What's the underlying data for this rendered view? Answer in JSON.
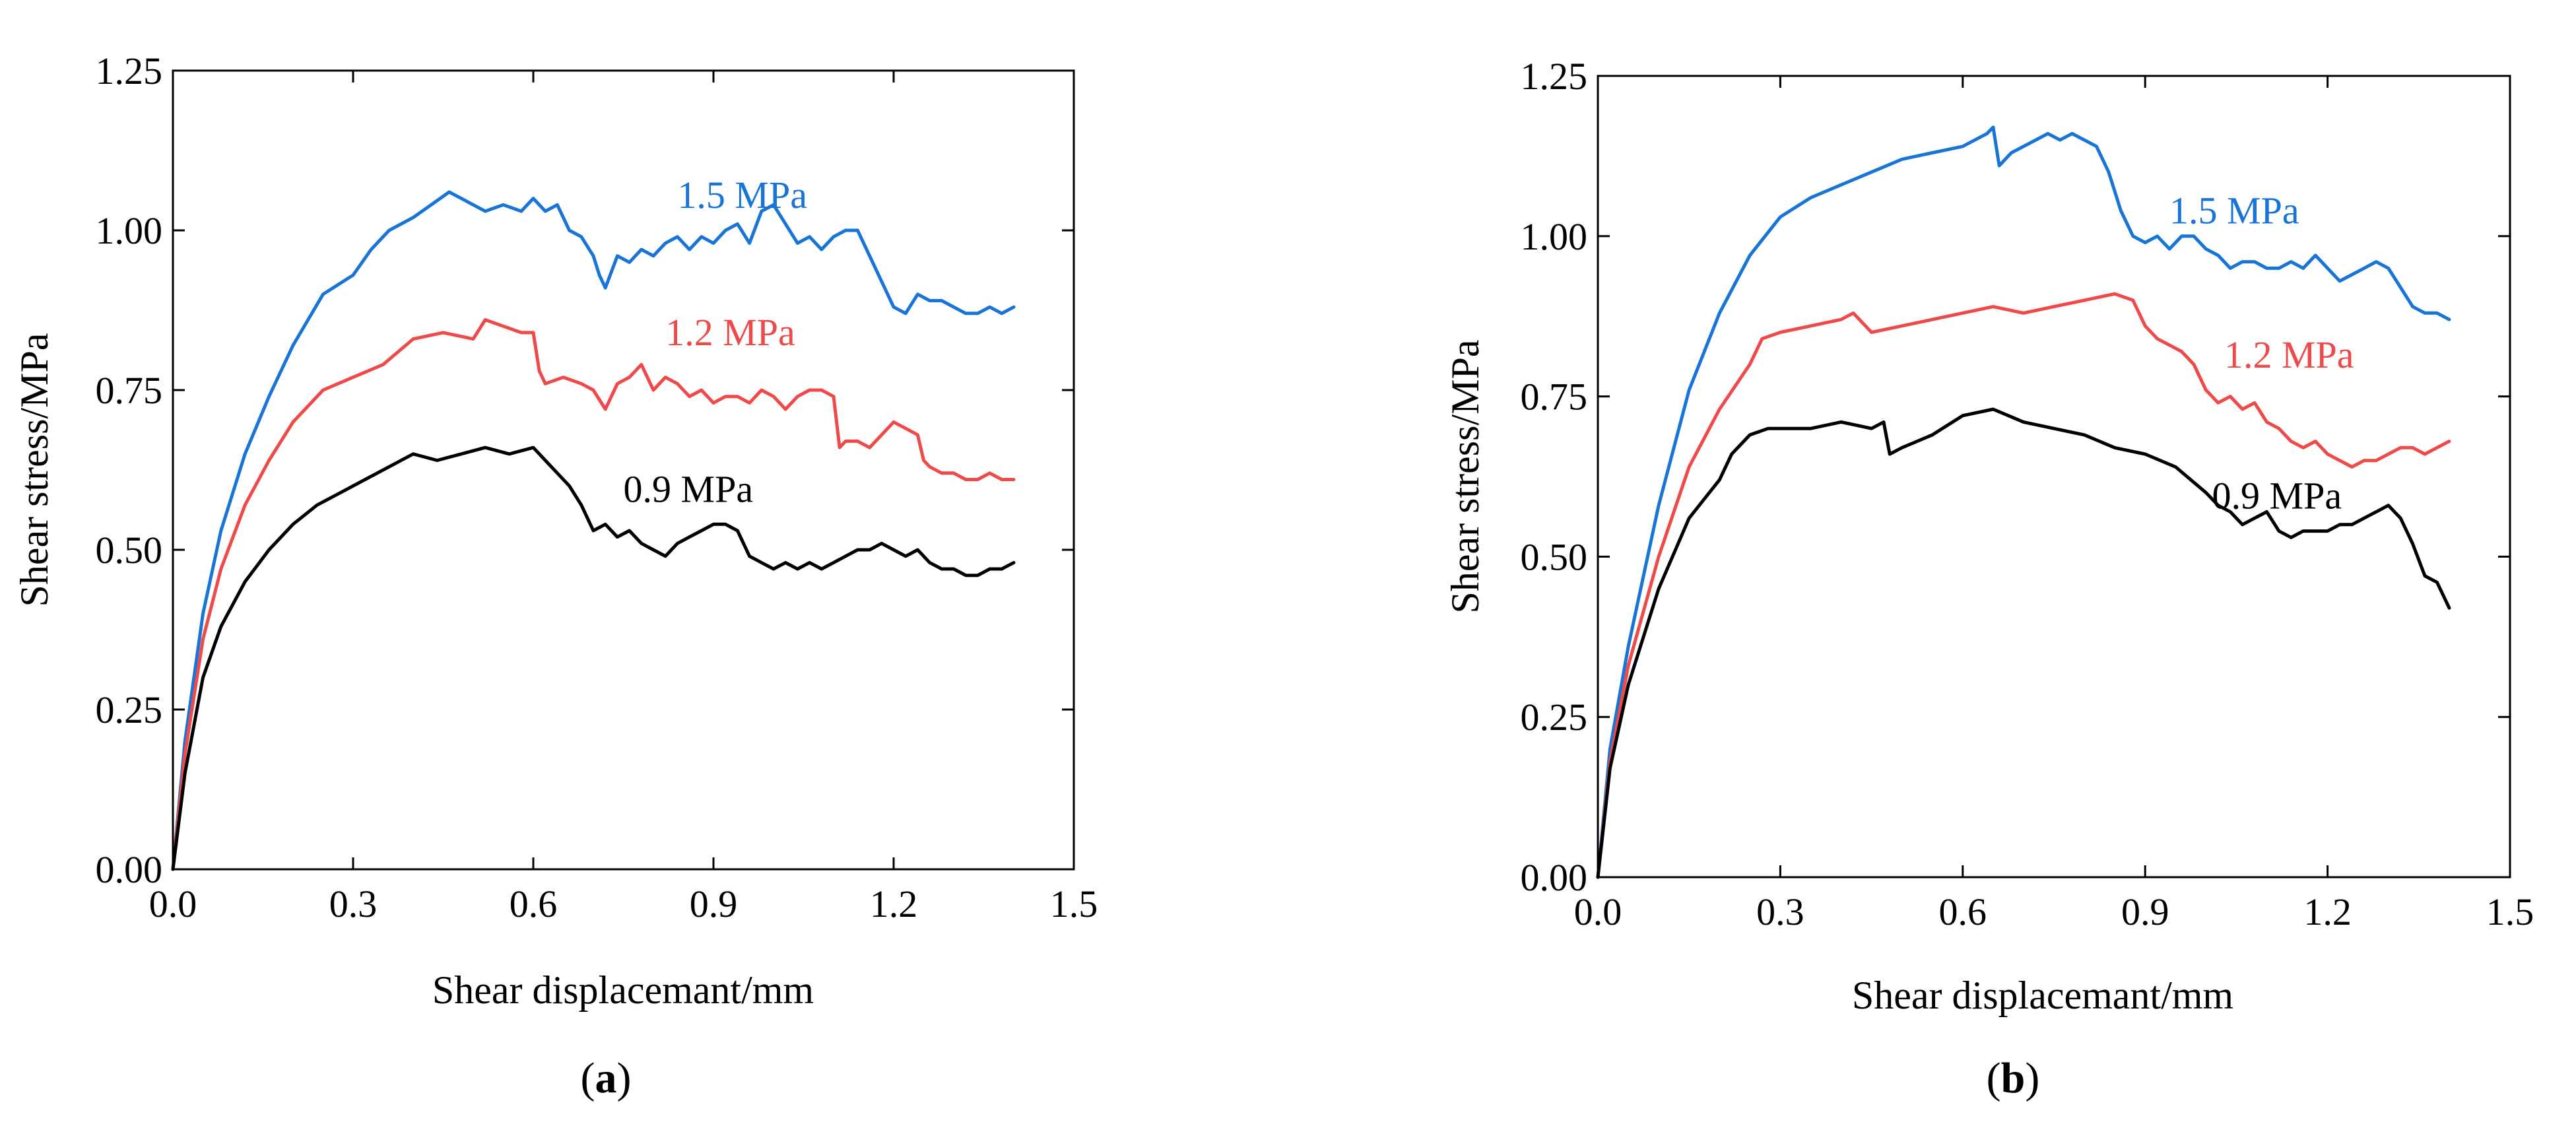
{
  "colors": {
    "series_1_5": "#1874d6",
    "series_1_2": "#ef4a4a",
    "series_0_9": "#000000",
    "axis": "#000000",
    "background": "#ffffff"
  },
  "chart_data": [
    {
      "type": "line",
      "panel": "a",
      "caption_open": "(",
      "caption_letter": "a",
      "caption_close": ")",
      "xlabel": "Shear displacemant/mm",
      "ylabel": "Shear stress/MPa",
      "xlim": [
        0,
        1.5
      ],
      "ylim": [
        0,
        1.25
      ],
      "xticks": [
        0.0,
        0.3,
        0.6,
        0.9,
        1.2,
        1.5
      ],
      "yticks": [
        0.0,
        0.25,
        0.5,
        0.75,
        1.0,
        1.25
      ],
      "xtick_labels": [
        "0.0",
        "0.3",
        "0.6",
        "0.9",
        "1.2",
        "1.5"
      ],
      "ytick_labels": [
        "0.00",
        "0.25",
        "0.50",
        "0.75",
        "1.00",
        "1.25"
      ],
      "grid": false,
      "series": [
        {
          "name": "1.5 MPa",
          "label": "1.5 MPa",
          "color": "#1874d6",
          "label_pos": [
            0.84,
            1.035
          ],
          "x": [
            0,
            0.02,
            0.05,
            0.08,
            0.12,
            0.16,
            0.2,
            0.25,
            0.3,
            0.33,
            0.36,
            0.4,
            0.43,
            0.46,
            0.48,
            0.5,
            0.52,
            0.55,
            0.58,
            0.6,
            0.62,
            0.64,
            0.66,
            0.68,
            0.7,
            0.71,
            0.72,
            0.74,
            0.76,
            0.78,
            0.8,
            0.82,
            0.84,
            0.86,
            0.88,
            0.9,
            0.92,
            0.94,
            0.96,
            0.98,
            1.0,
            1.02,
            1.04,
            1.06,
            1.08,
            1.1,
            1.12,
            1.14,
            1.16,
            1.18,
            1.2,
            1.22,
            1.24,
            1.26,
            1.28,
            1.3,
            1.32,
            1.34,
            1.36,
            1.38,
            1.4
          ],
          "y": [
            0,
            0.2,
            0.4,
            0.53,
            0.65,
            0.74,
            0.82,
            0.9,
            0.93,
            0.97,
            1.0,
            1.02,
            1.04,
            1.06,
            1.05,
            1.04,
            1.03,
            1.04,
            1.03,
            1.05,
            1.03,
            1.04,
            1.0,
            0.99,
            0.96,
            0.93,
            0.91,
            0.96,
            0.95,
            0.97,
            0.96,
            0.98,
            0.99,
            0.97,
            0.99,
            0.98,
            1.0,
            1.01,
            0.98,
            1.03,
            1.04,
            1.01,
            0.98,
            0.99,
            0.97,
            0.99,
            1.0,
            1.0,
            0.96,
            0.92,
            0.88,
            0.87,
            0.9,
            0.89,
            0.89,
            0.88,
            0.87,
            0.87,
            0.88,
            0.87,
            0.88
          ]
        },
        {
          "name": "1.2 MPa",
          "label": "1.2 MPa",
          "color": "#ef4a4a",
          "label_pos": [
            0.82,
            0.82
          ],
          "x": [
            0,
            0.02,
            0.05,
            0.08,
            0.12,
            0.16,
            0.2,
            0.25,
            0.3,
            0.35,
            0.4,
            0.45,
            0.5,
            0.52,
            0.55,
            0.58,
            0.6,
            0.61,
            0.62,
            0.65,
            0.68,
            0.7,
            0.72,
            0.74,
            0.76,
            0.78,
            0.8,
            0.82,
            0.84,
            0.86,
            0.88,
            0.9,
            0.92,
            0.94,
            0.96,
            0.98,
            1.0,
            1.02,
            1.04,
            1.06,
            1.08,
            1.1,
            1.11,
            1.12,
            1.14,
            1.16,
            1.18,
            1.2,
            1.22,
            1.24,
            1.25,
            1.26,
            1.28,
            1.3,
            1.32,
            1.34,
            1.36,
            1.38,
            1.4
          ],
          "y": [
            0,
            0.18,
            0.36,
            0.47,
            0.57,
            0.64,
            0.7,
            0.75,
            0.77,
            0.79,
            0.83,
            0.84,
            0.83,
            0.86,
            0.85,
            0.84,
            0.84,
            0.78,
            0.76,
            0.77,
            0.76,
            0.75,
            0.72,
            0.76,
            0.77,
            0.79,
            0.75,
            0.77,
            0.76,
            0.74,
            0.75,
            0.73,
            0.74,
            0.74,
            0.73,
            0.75,
            0.74,
            0.72,
            0.74,
            0.75,
            0.75,
            0.74,
            0.66,
            0.67,
            0.67,
            0.66,
            0.68,
            0.7,
            0.69,
            0.68,
            0.64,
            0.63,
            0.62,
            0.62,
            0.61,
            0.61,
            0.62,
            0.61,
            0.61
          ]
        },
        {
          "name": "0.9 MPa",
          "label": "0.9 MPa",
          "color": "#000000",
          "label_pos": [
            0.75,
            0.575
          ],
          "x": [
            0,
            0.02,
            0.05,
            0.08,
            0.12,
            0.16,
            0.2,
            0.24,
            0.28,
            0.32,
            0.36,
            0.4,
            0.44,
            0.48,
            0.52,
            0.56,
            0.6,
            0.62,
            0.64,
            0.66,
            0.68,
            0.7,
            0.72,
            0.74,
            0.76,
            0.78,
            0.8,
            0.82,
            0.84,
            0.86,
            0.88,
            0.9,
            0.92,
            0.94,
            0.96,
            0.98,
            1.0,
            1.02,
            1.04,
            1.06,
            1.08,
            1.1,
            1.12,
            1.14,
            1.16,
            1.18,
            1.2,
            1.22,
            1.24,
            1.26,
            1.28,
            1.3,
            1.32,
            1.34,
            1.36,
            1.38,
            1.4
          ],
          "y": [
            0,
            0.15,
            0.3,
            0.38,
            0.45,
            0.5,
            0.54,
            0.57,
            0.59,
            0.61,
            0.63,
            0.65,
            0.64,
            0.65,
            0.66,
            0.65,
            0.66,
            0.64,
            0.62,
            0.6,
            0.57,
            0.53,
            0.54,
            0.52,
            0.53,
            0.51,
            0.5,
            0.49,
            0.51,
            0.52,
            0.53,
            0.54,
            0.54,
            0.53,
            0.49,
            0.48,
            0.47,
            0.48,
            0.47,
            0.48,
            0.47,
            0.48,
            0.49,
            0.5,
            0.5,
            0.51,
            0.5,
            0.49,
            0.5,
            0.48,
            0.47,
            0.47,
            0.46,
            0.46,
            0.47,
            0.47,
            0.48
          ]
        }
      ]
    },
    {
      "type": "line",
      "panel": "b",
      "caption_open": "(",
      "caption_letter": "b",
      "caption_close": ")",
      "xlabel": "Shear displacemant/mm",
      "ylabel": "Shear stress/MPa",
      "xlim": [
        0,
        1.5
      ],
      "ylim": [
        0,
        1.25
      ],
      "xticks": [
        0.0,
        0.3,
        0.6,
        0.9,
        1.2,
        1.5
      ],
      "yticks": [
        0.0,
        0.25,
        0.5,
        0.75,
        1.0,
        1.25
      ],
      "xtick_labels": [
        "0.0",
        "0.3",
        "0.6",
        "0.9",
        "1.2",
        "1.5"
      ],
      "ytick_labels": [
        "0.00",
        "0.25",
        "0.50",
        "0.75",
        "1.00",
        "1.25"
      ],
      "grid": false,
      "series": [
        {
          "name": "1.5 MPa",
          "label": "1.5 MPa",
          "color": "#1874d6",
          "label_pos": [
            0.94,
            1.02
          ],
          "x": [
            0,
            0.02,
            0.05,
            0.1,
            0.15,
            0.2,
            0.25,
            0.3,
            0.35,
            0.4,
            0.45,
            0.5,
            0.55,
            0.6,
            0.62,
            0.64,
            0.65,
            0.66,
            0.68,
            0.7,
            0.72,
            0.74,
            0.76,
            0.78,
            0.8,
            0.82,
            0.84,
            0.85,
            0.86,
            0.88,
            0.9,
            0.92,
            0.94,
            0.96,
            0.98,
            1.0,
            1.02,
            1.04,
            1.06,
            1.08,
            1.1,
            1.12,
            1.14,
            1.16,
            1.18,
            1.2,
            1.22,
            1.24,
            1.26,
            1.28,
            1.3,
            1.32,
            1.34,
            1.36,
            1.38,
            1.4
          ],
          "y": [
            0,
            0.2,
            0.36,
            0.58,
            0.76,
            0.88,
            0.97,
            1.03,
            1.06,
            1.08,
            1.1,
            1.12,
            1.13,
            1.14,
            1.15,
            1.16,
            1.17,
            1.11,
            1.13,
            1.14,
            1.15,
            1.16,
            1.15,
            1.16,
            1.15,
            1.14,
            1.1,
            1.07,
            1.04,
            1.0,
            0.99,
            1.0,
            0.98,
            1.0,
            1.0,
            0.98,
            0.97,
            0.95,
            0.96,
            0.96,
            0.95,
            0.95,
            0.96,
            0.95,
            0.97,
            0.95,
            0.93,
            0.94,
            0.95,
            0.96,
            0.95,
            0.92,
            0.89,
            0.88,
            0.88,
            0.87
          ]
        },
        {
          "name": "1.2 MPa",
          "label": "1.2 MPa",
          "color": "#ef4a4a",
          "label_pos": [
            1.03,
            0.795
          ],
          "x": [
            0,
            0.02,
            0.05,
            0.1,
            0.15,
            0.2,
            0.25,
            0.27,
            0.3,
            0.35,
            0.4,
            0.42,
            0.45,
            0.5,
            0.55,
            0.6,
            0.65,
            0.7,
            0.75,
            0.8,
            0.85,
            0.88,
            0.9,
            0.92,
            0.94,
            0.96,
            0.98,
            1.0,
            1.02,
            1.04,
            1.06,
            1.08,
            1.1,
            1.12,
            1.14,
            1.16,
            1.18,
            1.2,
            1.22,
            1.24,
            1.26,
            1.28,
            1.3,
            1.32,
            1.34,
            1.36,
            1.38,
            1.4
          ],
          "y": [
            0,
            0.18,
            0.33,
            0.5,
            0.64,
            0.73,
            0.8,
            0.84,
            0.85,
            0.86,
            0.87,
            0.88,
            0.85,
            0.86,
            0.87,
            0.88,
            0.89,
            0.88,
            0.89,
            0.9,
            0.91,
            0.9,
            0.86,
            0.84,
            0.83,
            0.82,
            0.8,
            0.76,
            0.74,
            0.75,
            0.73,
            0.74,
            0.71,
            0.7,
            0.68,
            0.67,
            0.68,
            0.66,
            0.65,
            0.64,
            0.65,
            0.65,
            0.66,
            0.67,
            0.67,
            0.66,
            0.67,
            0.68
          ]
        },
        {
          "name": "0.9 MPa",
          "label": "0.9 MPa",
          "color": "#000000",
          "label_pos": [
            1.01,
            0.575
          ],
          "x": [
            0,
            0.02,
            0.05,
            0.1,
            0.15,
            0.2,
            0.22,
            0.25,
            0.28,
            0.3,
            0.35,
            0.4,
            0.45,
            0.47,
            0.48,
            0.5,
            0.55,
            0.6,
            0.65,
            0.7,
            0.75,
            0.8,
            0.85,
            0.9,
            0.95,
            1.0,
            1.02,
            1.04,
            1.06,
            1.08,
            1.1,
            1.12,
            1.14,
            1.16,
            1.18,
            1.2,
            1.22,
            1.24,
            1.26,
            1.28,
            1.3,
            1.32,
            1.34,
            1.36,
            1.38,
            1.39,
            1.4
          ],
          "y": [
            0,
            0.17,
            0.3,
            0.45,
            0.56,
            0.62,
            0.66,
            0.69,
            0.7,
            0.7,
            0.7,
            0.71,
            0.7,
            0.71,
            0.66,
            0.67,
            0.69,
            0.72,
            0.73,
            0.71,
            0.7,
            0.69,
            0.67,
            0.66,
            0.64,
            0.6,
            0.58,
            0.57,
            0.55,
            0.56,
            0.57,
            0.54,
            0.53,
            0.54,
            0.54,
            0.54,
            0.55,
            0.55,
            0.56,
            0.57,
            0.58,
            0.56,
            0.52,
            0.47,
            0.46,
            0.44,
            0.42
          ]
        }
      ]
    }
  ]
}
